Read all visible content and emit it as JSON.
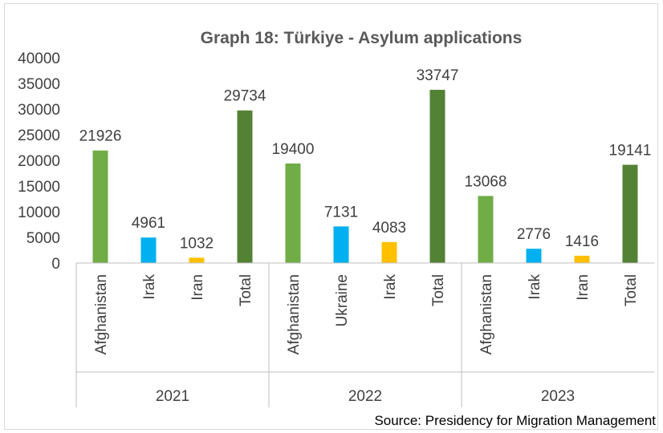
{
  "chart_data": {
    "type": "bar",
    "title": "Graph 18: Türkiye - Asylum applications",
    "source": "Source: Presidency for Migration Management",
    "ylim": [
      0,
      40000
    ],
    "yticks": [
      "0",
      "5000",
      "10000",
      "15000",
      "20000",
      "25000",
      "30000",
      "35000",
      "40000"
    ],
    "grid": false,
    "legend": "none",
    "groups": [
      {
        "label": "2021",
        "bars": [
          {
            "category": "Afghanistan",
            "value": 21926,
            "label": "21926",
            "color": "#70ad47"
          },
          {
            "category": "Irak",
            "value": 4961,
            "label": "4961",
            "color": "#00b0f0"
          },
          {
            "category": "Iran",
            "value": 1032,
            "label": "1032",
            "color": "#ffc000"
          },
          {
            "category": "Total",
            "value": 29734,
            "label": "29734",
            "color": "#548235"
          }
        ]
      },
      {
        "label": "2022",
        "bars": [
          {
            "category": "Afghanistan",
            "value": 19400,
            "label": "19400",
            "color": "#70ad47"
          },
          {
            "category": "Ukraine",
            "value": 7131,
            "label": "7131",
            "color": "#00b0f0"
          },
          {
            "category": "Irak",
            "value": 4083,
            "label": "4083",
            "color": "#ffc000"
          },
          {
            "category": "Total",
            "value": 33747,
            "label": "33747",
            "color": "#548235"
          }
        ]
      },
      {
        "label": "2023",
        "bars": [
          {
            "category": "Afghanistan",
            "value": 13068,
            "label": "13068",
            "color": "#70ad47"
          },
          {
            "category": "Irak",
            "value": 2776,
            "label": "2776",
            "color": "#00b0f0"
          },
          {
            "category": "Iran",
            "value": 1416,
            "label": "1416",
            "color": "#ffc000"
          },
          {
            "category": "Total",
            "value": 19141,
            "label": "19141",
            "color": "#548235"
          }
        ]
      }
    ]
  }
}
